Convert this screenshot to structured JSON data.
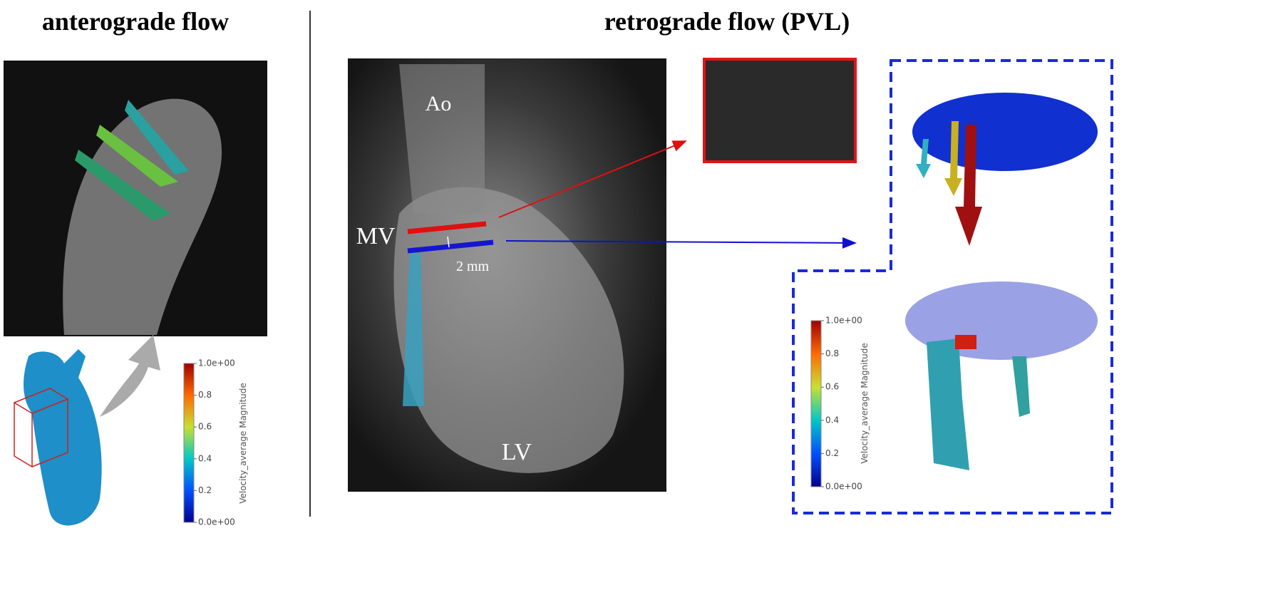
{
  "left_panel": {
    "title": "anterograde flow",
    "colorbar": {
      "label": "Velocity_average Magnitude",
      "ticks": [
        "1.0e+00",
        "0.8",
        "0.6",
        "0.4",
        "0.2",
        "0.0e+00"
      ]
    }
  },
  "right_panel": {
    "title": "retrograde flow (PVL)",
    "image_labels": {
      "aorta": "Ao",
      "valve": "MV",
      "distance": "2 mm",
      "ventricle": "LV"
    },
    "colorbar": {
      "label": "Velocity_average Magnitude",
      "ticks": [
        "1.0e+00",
        "0.8",
        "0.6",
        "0.4",
        "0.2",
        "0.0e+00"
      ]
    }
  }
}
